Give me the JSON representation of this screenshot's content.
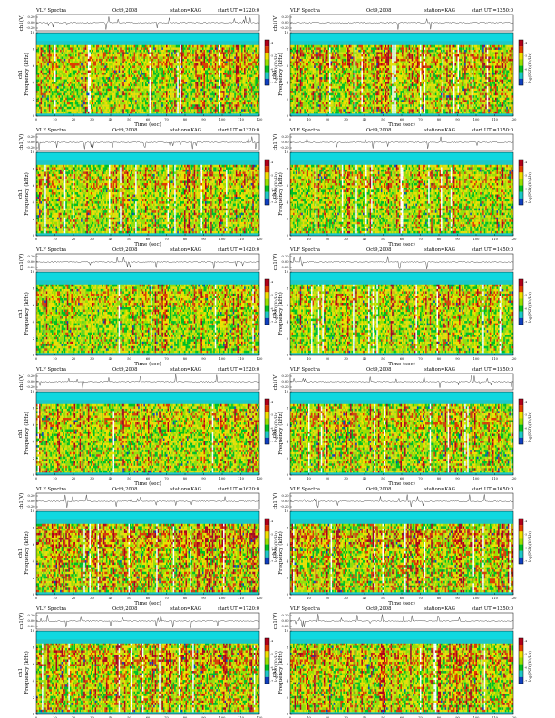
{
  "page": {
    "header_title": "VLF Spectra",
    "header_station": "station=KAG",
    "x_axis_label": "Time  (sec)",
    "waveform_axis_label": "ch1(V)",
    "spectrogram_axis_label": "ch1\nFrequency (kHz)",
    "colorbar_label": "log(PSD)(V²/Hz)",
    "colorbar_tick_labels": [
      "-4",
      "-5",
      "-6",
      "-7"
    ],
    "waveform_tick_labels": [
      "0.20",
      "0.00",
      "-0.20"
    ],
    "colors": {
      "background_band": "#1ec8c8",
      "top_band": "#10d8e0",
      "low": "#00c020",
      "mid": "#9ce000",
      "high": "#f0e000",
      "peak": "#e03a00",
      "extreme": "#b0001a",
      "gap": "#ffffff",
      "deep": "#1040c0",
      "trace": "#000000"
    }
  },
  "chart_data": [
    {
      "type": "heatmap",
      "date": "Oct9,2008",
      "start_label": "start  UT  =1220:0",
      "x_ticks": [
        "0",
        "10",
        "20",
        "30",
        "40",
        "50",
        "60",
        "70",
        "80",
        "90",
        "100",
        "110",
        "120"
      ],
      "y_ticks": [
        "0",
        "2",
        "4",
        "6",
        "8",
        "10"
      ],
      "xlim": [
        0,
        120
      ],
      "ylim": [
        0,
        10
      ],
      "intensity": 0.45
    },
    {
      "type": "heatmap",
      "date": "Oct9,2008",
      "start_label": "start  UT  =1250:0",
      "x_ticks": [
        "0",
        "10",
        "20",
        "30",
        "40",
        "50",
        "60",
        "70",
        "80",
        "90",
        "100",
        "110",
        "120"
      ],
      "y_ticks": [
        "0",
        "2",
        "4",
        "6",
        "8",
        "10"
      ],
      "xlim": [
        0,
        120
      ],
      "ylim": [
        0,
        10
      ],
      "intensity": 0.5
    },
    {
      "type": "heatmap",
      "date": "Oct9,2008",
      "start_label": "start  UT  =1320:0",
      "x_ticks": [
        "0",
        "10",
        "20",
        "30",
        "40",
        "50",
        "60",
        "70",
        "80",
        "90",
        "100",
        "110",
        "120"
      ],
      "y_ticks": [
        "0",
        "2",
        "4",
        "6",
        "8",
        "10"
      ],
      "xlim": [
        0,
        120
      ],
      "ylim": [
        0,
        10
      ],
      "intensity": 0.4
    },
    {
      "type": "heatmap",
      "date": "Oct9,2008",
      "start_label": "start  UT  =1350:0",
      "x_ticks": [
        "0",
        "10",
        "20",
        "30",
        "40",
        "50",
        "60",
        "70",
        "80",
        "90",
        "100",
        "110",
        "120"
      ],
      "y_ticks": [
        "0",
        "2",
        "4",
        "6",
        "8",
        "10"
      ],
      "xlim": [
        0,
        120
      ],
      "ylim": [
        0,
        10
      ],
      "intensity": 0.4
    },
    {
      "type": "heatmap",
      "date": "Oct9,2008",
      "start_label": "start  UT  =1420:0",
      "x_ticks": [
        "0",
        "10",
        "20",
        "30",
        "40",
        "50",
        "60",
        "70",
        "80",
        "90",
        "100",
        "110",
        "120"
      ],
      "y_ticks": [
        "0",
        "2",
        "4",
        "6",
        "8",
        "10"
      ],
      "xlim": [
        0,
        120
      ],
      "ylim": [
        0,
        10
      ],
      "intensity": 0.38
    },
    {
      "type": "heatmap",
      "date": "Oct9,2008",
      "start_label": "start  UT  =1450:0",
      "x_ticks": [
        "0",
        "10",
        "20",
        "30",
        "40",
        "50",
        "60",
        "70",
        "80",
        "90",
        "100",
        "110",
        "120"
      ],
      "y_ticks": [
        "0",
        "2",
        "4",
        "6",
        "8",
        "10"
      ],
      "xlim": [
        0,
        120
      ],
      "ylim": [
        0,
        10
      ],
      "intensity": 0.38
    },
    {
      "type": "heatmap",
      "date": "Oct9,2008",
      "start_label": "start  UT  =1520:0",
      "x_ticks": [
        "0",
        "10",
        "20",
        "30",
        "40",
        "50",
        "60",
        "70",
        "80",
        "90",
        "100",
        "110",
        "120"
      ],
      "y_ticks": [
        "0",
        "2",
        "4",
        "6",
        "8",
        "10"
      ],
      "xlim": [
        0,
        120
      ],
      "ylim": [
        0,
        10
      ],
      "intensity": 0.42
    },
    {
      "type": "heatmap",
      "date": "Oct9,2008",
      "start_label": "start  UT  =1550:0",
      "x_ticks": [
        "0",
        "10",
        "20",
        "30",
        "40",
        "50",
        "60",
        "70",
        "80",
        "90",
        "100",
        "110",
        "120"
      ],
      "y_ticks": [
        "0",
        "2",
        "4",
        "6",
        "8",
        "10"
      ],
      "xlim": [
        0,
        120
      ],
      "ylim": [
        0,
        10
      ],
      "intensity": 0.45
    },
    {
      "type": "heatmap",
      "date": "Oct9,2008",
      "start_label": "start  UT  =1620:0",
      "x_ticks": [
        "0",
        "10",
        "20",
        "30",
        "40",
        "50",
        "60",
        "70",
        "80",
        "90",
        "100",
        "110",
        "120"
      ],
      "y_ticks": [
        "0",
        "2",
        "4",
        "6",
        "8",
        "10"
      ],
      "xlim": [
        0,
        120
      ],
      "ylim": [
        0,
        10
      ],
      "intensity": 0.6
    },
    {
      "type": "heatmap",
      "date": "Oct9,2008",
      "start_label": "start  UT  =1650:0",
      "x_ticks": [
        "0",
        "10",
        "20",
        "30",
        "40",
        "50",
        "60",
        "70",
        "80",
        "90",
        "100",
        "110",
        "120"
      ],
      "y_ticks": [
        "0",
        "2",
        "4",
        "6",
        "8",
        "10"
      ],
      "xlim": [
        0,
        120
      ],
      "ylim": [
        0,
        10
      ],
      "intensity": 0.62
    },
    {
      "type": "heatmap",
      "date": "Oct9,2008",
      "start_label": "start  UT  =1720:0",
      "x_ticks": [
        "0",
        "10",
        "20",
        "30",
        "40",
        "50",
        "60",
        "70",
        "80",
        "90",
        "100",
        "110",
        "120"
      ],
      "y_ticks": [
        "0",
        "2",
        "4",
        "6",
        "8",
        "10"
      ],
      "xlim": [
        0,
        120
      ],
      "ylim": [
        0,
        10
      ],
      "intensity": 0.58
    },
    {
      "type": "heatmap",
      "date": "Oct9,2008",
      "start_label": "start  UT  =1250:0",
      "x_ticks": [
        "0",
        "10",
        "20",
        "30",
        "40",
        "50",
        "60",
        "70",
        "80",
        "90",
        "100",
        "110",
        "120"
      ],
      "y_ticks": [
        "0",
        "2",
        "4",
        "6",
        "8",
        "10"
      ],
      "xlim": [
        0,
        120
      ],
      "ylim": [
        0,
        10
      ],
      "intensity": 0.5
    }
  ]
}
